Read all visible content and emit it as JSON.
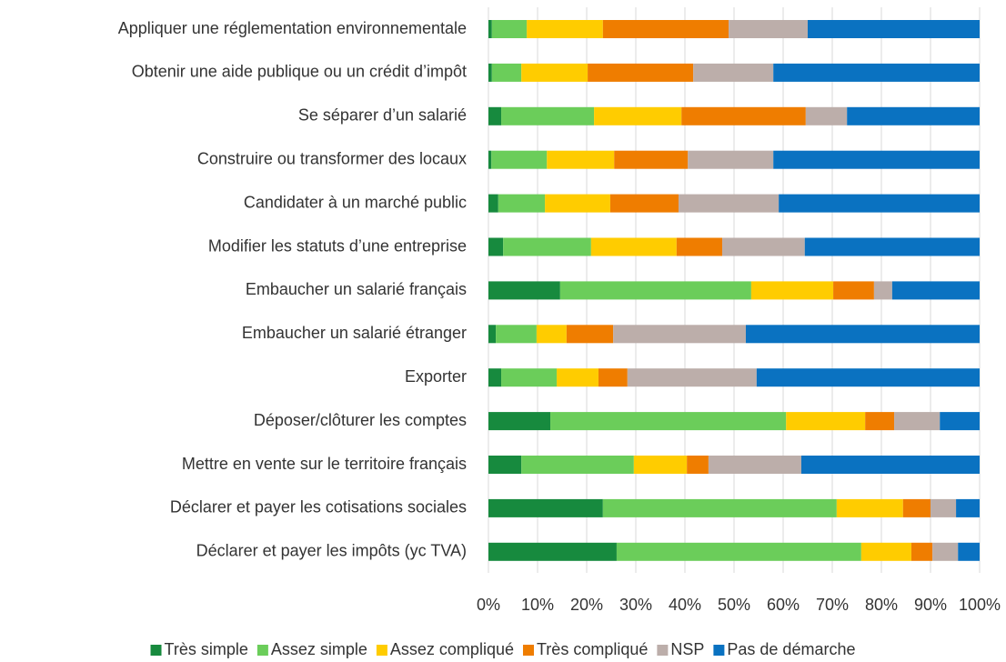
{
  "chart_data": {
    "type": "stacked_barh",
    "categories": [
      "Appliquer une réglementation environnementale",
      "Obtenir une aide publique ou un crédit d’impôt",
      "Se séparer d’un salarié",
      "Construire ou transformer des locaux",
      "Candidater à un marché public",
      "Modifier les statuts d’une entreprise",
      "Embaucher un salarié français",
      "Embaucher un salarié étranger",
      "Exporter",
      "Déposer/clôturer les comptes",
      "Mettre en vente sur le territoire français",
      "Déclarer et payer les cotisations sociales",
      "Déclarer et payer les impôts (yc TVA)"
    ],
    "series": [
      {
        "name": "Très simple",
        "color": "#178a3e",
        "values": [
          0.7,
          0.7,
          2.6,
          0.6,
          2.0,
          3.0,
          14.6,
          1.5,
          2.6,
          12.6,
          6.7,
          23.3,
          26.1
        ]
      },
      {
        "name": "Assez simple",
        "color": "#6bcd5a",
        "values": [
          7.1,
          6.0,
          18.9,
          11.3,
          9.5,
          17.9,
          38.9,
          8.3,
          11.3,
          48.0,
          22.9,
          47.6,
          49.8
        ]
      },
      {
        "name": "Assez compliqué",
        "color": "#ffcc00",
        "values": [
          15.5,
          13.5,
          17.8,
          13.7,
          13.3,
          17.4,
          16.7,
          6.1,
          8.5,
          16.1,
          10.8,
          13.5,
          10.2
        ]
      },
      {
        "name": "Très compliqué",
        "color": "#ef7d00",
        "values": [
          25.6,
          21.5,
          25.3,
          15.0,
          13.9,
          9.3,
          8.3,
          9.5,
          5.9,
          5.9,
          4.4,
          5.6,
          4.3
        ]
      },
      {
        "name": "NSP",
        "color": "#bcaeaa",
        "values": [
          16.1,
          16.3,
          8.4,
          17.4,
          20.4,
          16.8,
          3.7,
          27.0,
          26.3,
          9.3,
          18.9,
          5.2,
          5.2
        ]
      },
      {
        "name": "Pas de démarche",
        "color": "#0a72c1",
        "values": [
          35.0,
          42.0,
          27.0,
          42.0,
          40.9,
          35.6,
          17.8,
          47.6,
          45.4,
          8.1,
          36.3,
          4.8,
          4.4
        ]
      }
    ],
    "xlim": [
      0,
      100
    ],
    "xticks": [
      {
        "value": 0,
        "label": "0%"
      },
      {
        "value": 10,
        "label": "10%"
      },
      {
        "value": 20,
        "label": "20%"
      },
      {
        "value": 30,
        "label": "30%"
      },
      {
        "value": 40,
        "label": "40%"
      },
      {
        "value": 50,
        "label": "50%"
      },
      {
        "value": 60,
        "label": "60%"
      },
      {
        "value": 70,
        "label": "70%"
      },
      {
        "value": 80,
        "label": "80%"
      },
      {
        "value": 90,
        "label": "90%"
      },
      {
        "value": 100,
        "label": "100%"
      }
    ],
    "grid": true,
    "legend": "bottom"
  }
}
